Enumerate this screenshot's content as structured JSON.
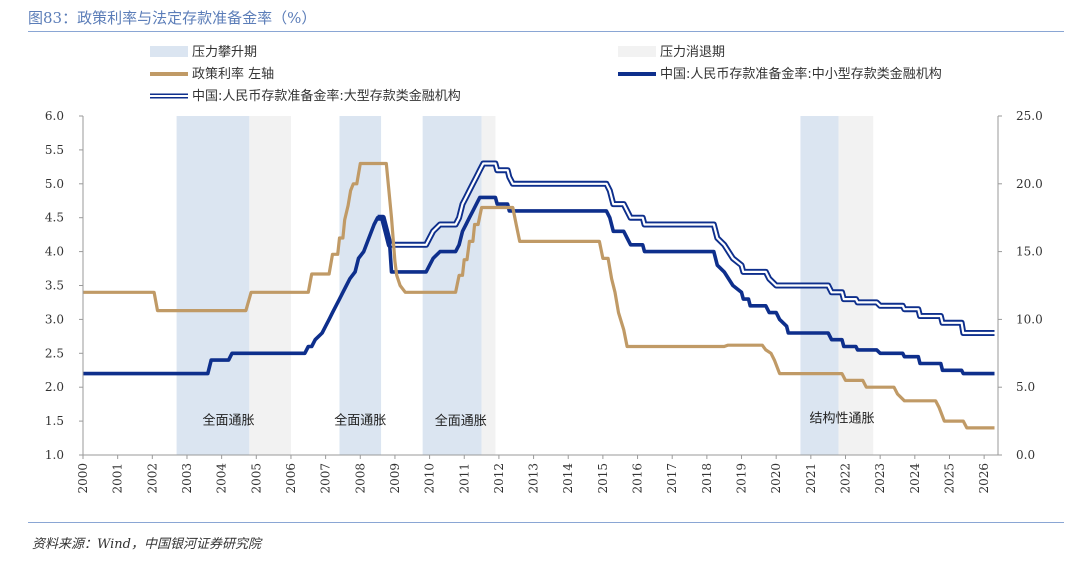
{
  "title": "图83：政策利率与法定存款准备金率（%）",
  "source": "资料来源：Wind，中国银河证券研究院",
  "colors": {
    "policy": "#c09a66",
    "small_rrr": "#0e2f8c",
    "large_rrr": "#0e2f8c",
    "rise_band": "#dbe5f1",
    "fall_band": "#f2f2f2"
  },
  "chart_data": {
    "type": "line",
    "x_range": [
      2000,
      2026.4
    ],
    "x_ticks": [
      "2000",
      "2001",
      "2002",
      "2003",
      "2004",
      "2005",
      "2006",
      "2007",
      "2008",
      "2009",
      "2010",
      "2011",
      "2012",
      "2013",
      "2014",
      "2015",
      "2016",
      "2017",
      "2018",
      "2019",
      "2020",
      "2021",
      "2022",
      "2023",
      "2024",
      "2025",
      "2026"
    ],
    "y_left": {
      "range": [
        1.0,
        6.0
      ],
      "ticks": [
        "1.0",
        "1.5",
        "2.0",
        "2.5",
        "3.0",
        "3.5",
        "4.0",
        "4.5",
        "5.0",
        "5.5",
        "6.0"
      ]
    },
    "y_right": {
      "range": [
        0,
        25
      ],
      "ticks": [
        "0.0",
        "5.0",
        "10.0",
        "15.0",
        "20.0",
        "25.0"
      ]
    },
    "legend": {
      "rise": "压力攀升期",
      "fall": "压力消退期",
      "policy": "政策利率 左轴",
      "small": "中国:人民币存款准备金率:中小型存款类金融机构",
      "large": "中国:人民币存款准备金率:大型存款类金融机构"
    },
    "bands": [
      {
        "type": "rise",
        "start": 2002.7,
        "end": 2004.8
      },
      {
        "type": "fall",
        "start": 2004.8,
        "end": 2006.0
      },
      {
        "type": "rise",
        "start": 2007.4,
        "end": 2008.6
      },
      {
        "type": "rise",
        "start": 2009.8,
        "end": 2011.5
      },
      {
        "type": "fall",
        "start": 2011.5,
        "end": 2011.9
      },
      {
        "type": "rise",
        "start": 2020.7,
        "end": 2021.8
      },
      {
        "type": "fall",
        "start": 2021.8,
        "end": 2022.8
      }
    ],
    "annotations": [
      {
        "text": "全面通胀",
        "x": 2004.2,
        "y": 1.45
      },
      {
        "text": "全面通胀",
        "x": 2008.0,
        "y": 1.45
      },
      {
        "text": "全面通胀",
        "x": 2010.9,
        "y": 1.44
      },
      {
        "text": "结构性通胀",
        "x": 2021.9,
        "y": 1.48
      }
    ],
    "series": [
      {
        "name": "政策利率 左轴",
        "axis": "left",
        "points": [
          [
            2000,
            3.4
          ],
          [
            2002.05,
            3.4
          ],
          [
            2002.15,
            3.13
          ],
          [
            2004.7,
            3.13
          ],
          [
            2004.85,
            3.4
          ],
          [
            2006.5,
            3.4
          ],
          [
            2006.6,
            3.67
          ],
          [
            2007.1,
            3.67
          ],
          [
            2007.2,
            3.96
          ],
          [
            2007.35,
            3.96
          ],
          [
            2007.4,
            4.2
          ],
          [
            2007.5,
            4.2
          ],
          [
            2007.55,
            4.47
          ],
          [
            2007.65,
            4.68
          ],
          [
            2007.72,
            4.9
          ],
          [
            2007.8,
            5.0
          ],
          [
            2007.9,
            5.0
          ],
          [
            2008.0,
            5.3
          ],
          [
            2008.75,
            5.3
          ],
          [
            2008.9,
            4.5
          ],
          [
            2009.0,
            3.86
          ],
          [
            2009.05,
            3.65
          ],
          [
            2009.15,
            3.5
          ],
          [
            2009.3,
            3.4
          ],
          [
            2010.75,
            3.4
          ],
          [
            2010.85,
            3.65
          ],
          [
            2010.95,
            3.65
          ],
          [
            2011.0,
            3.88
          ],
          [
            2011.08,
            3.88
          ],
          [
            2011.15,
            4.15
          ],
          [
            2011.25,
            4.15
          ],
          [
            2011.3,
            4.4
          ],
          [
            2011.4,
            4.4
          ],
          [
            2011.5,
            4.65
          ],
          [
            2012.4,
            4.65
          ],
          [
            2012.5,
            4.4
          ],
          [
            2012.6,
            4.15
          ],
          [
            2014.9,
            4.15
          ],
          [
            2015.0,
            3.9
          ],
          [
            2015.15,
            3.9
          ],
          [
            2015.25,
            3.6
          ],
          [
            2015.35,
            3.4
          ],
          [
            2015.45,
            3.1
          ],
          [
            2015.6,
            2.85
          ],
          [
            2015.7,
            2.6
          ],
          [
            2018.5,
            2.6
          ],
          [
            2018.6,
            2.62
          ],
          [
            2019.6,
            2.62
          ],
          [
            2019.7,
            2.55
          ],
          [
            2019.85,
            2.5
          ],
          [
            2019.95,
            2.4
          ],
          [
            2020.1,
            2.2
          ],
          [
            2021.9,
            2.2
          ],
          [
            2022.0,
            2.1
          ],
          [
            2022.5,
            2.1
          ],
          [
            2022.6,
            2.0
          ],
          [
            2023.4,
            2.0
          ],
          [
            2023.5,
            1.9
          ],
          [
            2023.7,
            1.8
          ],
          [
            2024.6,
            1.8
          ],
          [
            2024.7,
            1.7
          ],
          [
            2024.85,
            1.5
          ],
          [
            2025.4,
            1.5
          ],
          [
            2025.5,
            1.4
          ],
          [
            2026.3,
            1.4
          ]
        ]
      },
      {
        "name": "中国:人民币存款准备金率:中小型存款类金融机构",
        "axis": "right",
        "points": [
          [
            2000,
            6.0
          ],
          [
            2003.6,
            6.0
          ],
          [
            2003.7,
            7.0
          ],
          [
            2004.2,
            7.0
          ],
          [
            2004.3,
            7.5
          ],
          [
            2006.4,
            7.5
          ],
          [
            2006.5,
            8.0
          ],
          [
            2006.6,
            8.0
          ],
          [
            2006.7,
            8.5
          ],
          [
            2006.9,
            9.0
          ],
          [
            2007.0,
            9.5
          ],
          [
            2007.1,
            10.0
          ],
          [
            2007.2,
            10.5
          ],
          [
            2007.3,
            11.0
          ],
          [
            2007.4,
            11.5
          ],
          [
            2007.5,
            12.0
          ],
          [
            2007.6,
            12.5
          ],
          [
            2007.7,
            13.0
          ],
          [
            2007.85,
            13.5
          ],
          [
            2007.95,
            14.5
          ],
          [
            2008.1,
            15.0
          ],
          [
            2008.25,
            16.0
          ],
          [
            2008.4,
            17.0
          ],
          [
            2008.5,
            17.5
          ],
          [
            2008.65,
            17.5
          ],
          [
            2008.75,
            16.5
          ],
          [
            2008.85,
            15.5
          ],
          [
            2008.9,
            13.5
          ],
          [
            2009.9,
            13.5
          ],
          [
            2010.0,
            14.0
          ],
          [
            2010.1,
            14.5
          ],
          [
            2010.3,
            15.0
          ],
          [
            2010.75,
            15.0
          ],
          [
            2010.85,
            15.5
          ],
          [
            2010.95,
            16.5
          ],
          [
            2011.05,
            17.0
          ],
          [
            2011.15,
            17.5
          ],
          [
            2011.25,
            18.0
          ],
          [
            2011.35,
            18.5
          ],
          [
            2011.45,
            19.0
          ],
          [
            2011.9,
            19.0
          ],
          [
            2011.95,
            18.5
          ],
          [
            2012.25,
            18.5
          ],
          [
            2012.3,
            18.0
          ],
          [
            2015.1,
            18.0
          ],
          [
            2015.2,
            17.5
          ],
          [
            2015.3,
            16.5
          ],
          [
            2015.6,
            16.5
          ],
          [
            2015.7,
            16.0
          ],
          [
            2015.8,
            15.5
          ],
          [
            2016.15,
            15.5
          ],
          [
            2016.2,
            15.0
          ],
          [
            2018.2,
            15.0
          ],
          [
            2018.3,
            14.0
          ],
          [
            2018.5,
            13.5
          ],
          [
            2018.75,
            12.5
          ],
          [
            2019.0,
            12.0
          ],
          [
            2019.05,
            11.5
          ],
          [
            2019.2,
            11.5
          ],
          [
            2019.25,
            11.0
          ],
          [
            2019.7,
            11.0
          ],
          [
            2019.8,
            10.5
          ],
          [
            2020.0,
            10.5
          ],
          [
            2020.1,
            10.0
          ],
          [
            2020.3,
            9.5
          ],
          [
            2020.35,
            9.0
          ],
          [
            2021.5,
            9.0
          ],
          [
            2021.6,
            8.5
          ],
          [
            2021.9,
            8.5
          ],
          [
            2021.95,
            8.0
          ],
          [
            2022.3,
            8.0
          ],
          [
            2022.35,
            7.75
          ],
          [
            2022.9,
            7.75
          ],
          [
            2023.0,
            7.5
          ],
          [
            2023.65,
            7.5
          ],
          [
            2023.7,
            7.25
          ],
          [
            2024.1,
            7.25
          ],
          [
            2024.15,
            6.75
          ],
          [
            2024.75,
            6.75
          ],
          [
            2024.8,
            6.25
          ],
          [
            2025.35,
            6.25
          ],
          [
            2025.4,
            6.0
          ],
          [
            2026.3,
            6.0
          ]
        ]
      },
      {
        "name": "中国:人民币存款准备金率:大型存款类金融机构",
        "axis": "right",
        "points": [
          [
            2008.5,
            17.5
          ],
          [
            2008.65,
            17.5
          ],
          [
            2008.75,
            16.5
          ],
          [
            2008.85,
            15.5
          ],
          [
            2009.9,
            15.5
          ],
          [
            2010.0,
            16.0
          ],
          [
            2010.1,
            16.5
          ],
          [
            2010.3,
            17.0
          ],
          [
            2010.75,
            17.0
          ],
          [
            2010.85,
            17.5
          ],
          [
            2010.95,
            18.5
          ],
          [
            2011.05,
            19.0
          ],
          [
            2011.15,
            19.5
          ],
          [
            2011.25,
            20.0
          ],
          [
            2011.35,
            20.5
          ],
          [
            2011.45,
            21.0
          ],
          [
            2011.55,
            21.5
          ],
          [
            2011.9,
            21.5
          ],
          [
            2011.95,
            21.0
          ],
          [
            2012.25,
            21.0
          ],
          [
            2012.3,
            20.5
          ],
          [
            2012.4,
            20.0
          ],
          [
            2015.1,
            20.0
          ],
          [
            2015.2,
            19.5
          ],
          [
            2015.3,
            18.5
          ],
          [
            2015.6,
            18.5
          ],
          [
            2015.7,
            18.0
          ],
          [
            2015.8,
            17.5
          ],
          [
            2016.15,
            17.5
          ],
          [
            2016.2,
            17.0
          ],
          [
            2018.2,
            17.0
          ],
          [
            2018.3,
            16.0
          ],
          [
            2018.5,
            15.5
          ],
          [
            2018.75,
            14.5
          ],
          [
            2019.0,
            14.0
          ],
          [
            2019.05,
            13.5
          ],
          [
            2019.7,
            13.5
          ],
          [
            2019.8,
            13.0
          ],
          [
            2020.0,
            12.5
          ],
          [
            2021.5,
            12.5
          ],
          [
            2021.6,
            12.0
          ],
          [
            2021.9,
            12.0
          ],
          [
            2021.95,
            11.5
          ],
          [
            2022.3,
            11.5
          ],
          [
            2022.35,
            11.25
          ],
          [
            2022.9,
            11.25
          ],
          [
            2023.0,
            11.0
          ],
          [
            2023.65,
            11.0
          ],
          [
            2023.7,
            10.75
          ],
          [
            2024.1,
            10.75
          ],
          [
            2024.15,
            10.25
          ],
          [
            2024.75,
            10.25
          ],
          [
            2024.8,
            9.75
          ],
          [
            2025.35,
            9.75
          ],
          [
            2025.4,
            9.0
          ],
          [
            2026.3,
            9.0
          ]
        ]
      }
    ]
  }
}
